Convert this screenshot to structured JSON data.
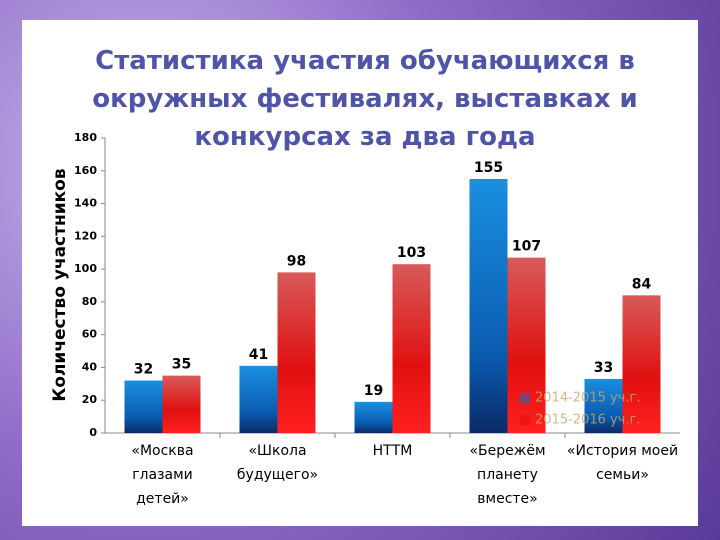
{
  "chart_data": {
    "type": "bar",
    "title": "Статистика участия обучающихся в окружных фестивалях, выставках и конкурсах за два года",
    "y_label": "Количество участников",
    "categories": [
      "«Москва глазами детей»",
      "«Школа будущего»",
      "НТТМ",
      "«Бережём планету вместе»",
      "«История моей семьи»"
    ],
    "series": [
      {
        "name": "2014-2015 уч.г.",
        "color": "#0a6fd0",
        "values": [
          32,
          41,
          19,
          155,
          33
        ]
      },
      {
        "name": "2015-2016 уч.г.",
        "color": "#e01010",
        "values": [
          35,
          98,
          103,
          107,
          84
        ]
      }
    ],
    "ylim": [
      0,
      180
    ],
    "yticks": [
      0,
      20,
      40,
      60,
      80,
      100,
      120,
      140,
      160,
      180
    ],
    "grid": false
  }
}
